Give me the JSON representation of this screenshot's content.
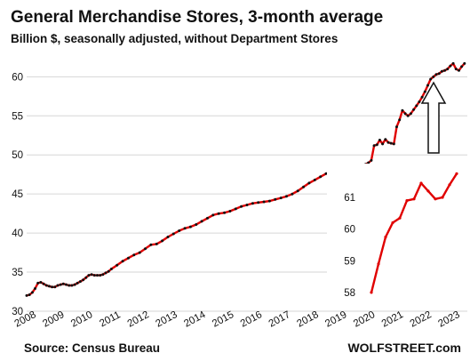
{
  "chart_data": [
    {
      "type": "line",
      "title": "General Merchandise Stores, 3-month average",
      "subtitle": "Billion $, seasonally adjusted, without Department Stores",
      "xlabel": "",
      "ylabel": "",
      "xlim": [
        2008,
        2023.6
      ],
      "ylim": [
        30,
        63
      ],
      "grid": true,
      "x_ticks": [
        "2008",
        "2009",
        "2010",
        "2011",
        "2012",
        "2013",
        "2014",
        "2015",
        "2016",
        "2017",
        "2018",
        "2019",
        "2020",
        "2021",
        "2022",
        "2023"
      ],
      "y_ticks": [
        "30",
        "35",
        "40",
        "45",
        "50",
        "55",
        "60"
      ],
      "line_color": "#e00000",
      "marker_color": "#111111",
      "series": [
        {
          "x": [
            2008.0,
            2008.1,
            2008.2,
            2008.3,
            2008.4,
            2008.5,
            2008.6,
            2008.7,
            2008.8,
            2008.9,
            2009.0,
            2009.1,
            2009.2,
            2009.3,
            2009.4,
            2009.5,
            2009.6,
            2009.7,
            2009.8,
            2009.9,
            2010.0,
            2010.1,
            2010.2,
            2010.3,
            2010.4,
            2010.5,
            2010.6,
            2010.7,
            2010.8,
            2010.9,
            2011.0,
            2011.2,
            2011.4,
            2011.6,
            2011.8,
            2012.0,
            2012.2,
            2012.4,
            2012.6,
            2012.8,
            2013.0,
            2013.2,
            2013.4,
            2013.6,
            2013.8,
            2014.0,
            2014.2,
            2014.4,
            2014.6,
            2014.8,
            2015.0,
            2015.2,
            2015.4,
            2015.6,
            2015.8,
            2016.0,
            2016.2,
            2016.4,
            2016.6,
            2016.8,
            2017.0,
            2017.2,
            2017.4,
            2017.6,
            2017.8,
            2018.0,
            2018.2,
            2018.4,
            2018.6,
            2018.8,
            2019.0,
            2019.2,
            2019.4,
            2019.6,
            2019.8,
            2020.0,
            2020.1,
            2020.2,
            2020.3,
            2020.4,
            2020.5,
            2020.6,
            2020.7,
            2020.8,
            2020.9,
            2021.0,
            2021.1,
            2021.2,
            2021.3,
            2021.4,
            2021.5,
            2021.6,
            2021.7,
            2021.8,
            2021.9,
            2022.0,
            2022.1,
            2022.2,
            2022.3,
            2022.4,
            2022.5,
            2022.6,
            2022.7,
            2022.8,
            2022.9,
            2023.0,
            2023.1,
            2023.2,
            2023.3,
            2023.4,
            2023.5
          ],
          "y": [
            32.0,
            32.1,
            32.4,
            32.9,
            33.6,
            33.7,
            33.5,
            33.3,
            33.2,
            33.1,
            33.1,
            33.3,
            33.4,
            33.5,
            33.4,
            33.3,
            33.3,
            33.4,
            33.6,
            33.8,
            34.0,
            34.3,
            34.6,
            34.7,
            34.6,
            34.6,
            34.6,
            34.7,
            34.9,
            35.1,
            35.4,
            35.9,
            36.4,
            36.8,
            37.2,
            37.5,
            38.0,
            38.5,
            38.6,
            39.0,
            39.5,
            39.9,
            40.3,
            40.6,
            40.8,
            41.1,
            41.5,
            41.9,
            42.3,
            42.5,
            42.6,
            42.8,
            43.1,
            43.4,
            43.6,
            43.8,
            43.9,
            44.0,
            44.1,
            44.3,
            44.5,
            44.7,
            45.0,
            45.4,
            45.9,
            46.4,
            46.8,
            47.2,
            47.6,
            47.9,
            48.0,
            48.1,
            48.2,
            48.4,
            48.6,
            48.8,
            49.0,
            49.3,
            51.2,
            51.3,
            51.9,
            51.4,
            52.0,
            51.6,
            51.5,
            51.4,
            53.6,
            54.5,
            55.7,
            55.3,
            55.0,
            55.3,
            55.8,
            56.3,
            56.8,
            57.4,
            58.1,
            58.9,
            59.7,
            60.0,
            60.3,
            60.4,
            60.7,
            60.8,
            61.0,
            61.4,
            61.7,
            61.0,
            60.8,
            61.3,
            61.7
          ]
        }
      ]
    },
    {
      "type": "line",
      "title": "",
      "xlim": [
        2022.1,
        2023.5
      ],
      "ylim": [
        57.8,
        61.9
      ],
      "y_ticks": [
        "58",
        "59",
        "60",
        "61"
      ],
      "line_color": "#e00000",
      "marker_color": "#e00000",
      "series": [
        {
          "x": [
            2022.2,
            2022.3,
            2022.4,
            2022.5,
            2022.6,
            2022.7,
            2022.8,
            2022.9,
            2023.0,
            2023.1,
            2023.2,
            2023.3,
            2023.4
          ],
          "y": [
            58.0,
            58.9,
            59.75,
            60.2,
            60.35,
            60.9,
            60.95,
            61.45,
            61.2,
            60.95,
            61.0,
            61.4,
            61.75
          ]
        }
      ]
    }
  ],
  "source": "Source: Census Bureau",
  "brand": "WOLFSTREET.com"
}
